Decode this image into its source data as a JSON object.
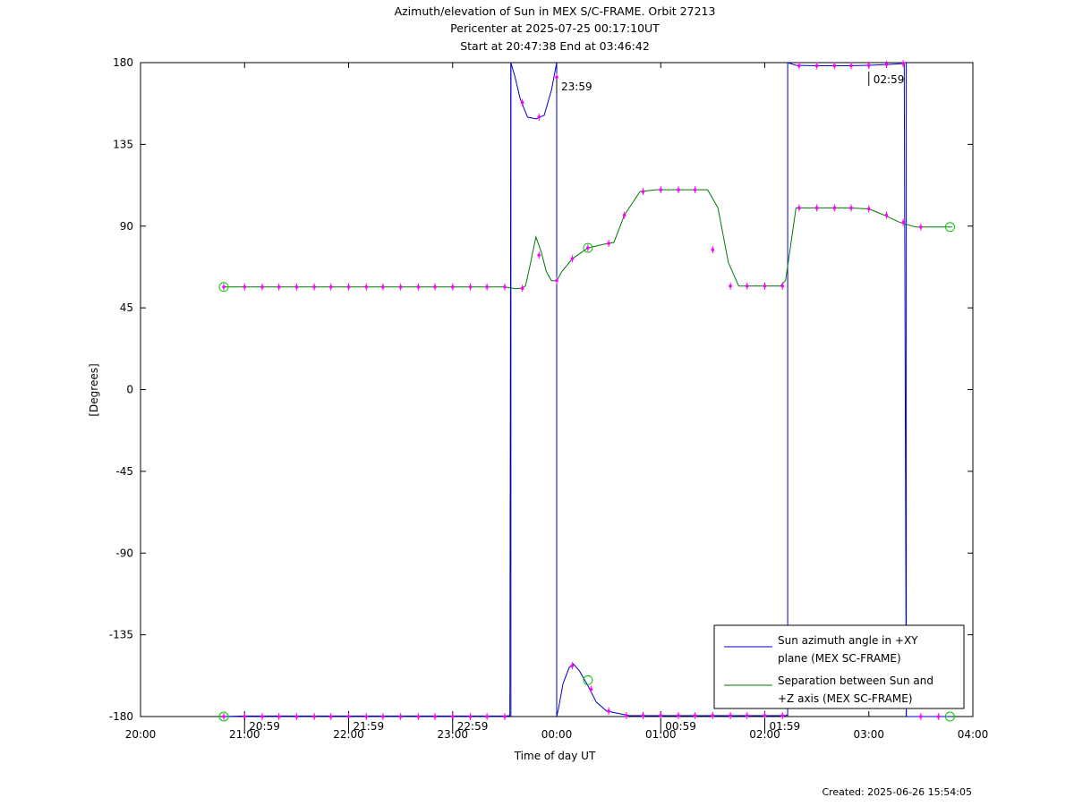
{
  "chart_data": {
    "type": "line",
    "title_lines": [
      "Azimuth/elevation of Sun in MEX S/C-FRAME.  Orbit 27213",
      "Pericenter at 2025-07-25 00:17:10UT",
      "Start at 20:47:38 End at 03:46:42"
    ],
    "xlabel": "Time of day UT",
    "ylabel": "[Degrees]",
    "xlim": [
      20.0,
      28.0
    ],
    "ylim": [
      -180,
      180
    ],
    "x_ticks": [
      20,
      21,
      22,
      23,
      24,
      25,
      26,
      27,
      28
    ],
    "x_tick_labels": [
      "20:00",
      "21:00",
      "22:00",
      "23:00",
      "00:00",
      "01:00",
      "02:00",
      "03:00",
      "04:00"
    ],
    "y_ticks": [
      180,
      135,
      90,
      45,
      0,
      -45,
      -90,
      -135,
      -180
    ],
    "y_tick_labels": [
      "180",
      "135",
      "90",
      "45",
      "0",
      "-45",
      "-90",
      "-135",
      "-180"
    ],
    "grid": false,
    "legend_position": "bottom-right",
    "hour_marks": [
      {
        "x": 21.0,
        "label": "20:59",
        "y": -180
      },
      {
        "x": 22.0,
        "label": "21:59",
        "y": -180
      },
      {
        "x": 23.0,
        "label": "22:59",
        "y": -180
      },
      {
        "x": 24.0,
        "label": "23:59",
        "y": 172
      },
      {
        "x": 25.0,
        "label": "00:59",
        "y": -180
      },
      {
        "x": 26.0,
        "label": "01:59",
        "y": -180
      },
      {
        "x": 27.0,
        "label": "02:59",
        "y": 176
      }
    ],
    "series": [
      {
        "name": "Sun azimuth angle in +XY plane (MEX SC-FRAME)",
        "legend_lines": [
          "Sun azimuth angle in +XY",
          "plane (MEX SC-FRAME)"
        ],
        "color": "#0000c8",
        "segments": [
          [
            [
              20.8,
              -180
            ],
            [
              21.0,
              -179.7
            ],
            [
              22.0,
              -179.7
            ],
            [
              23.0,
              -179.7
            ],
            [
              23.5,
              -179.7
            ],
            [
              23.55,
              -179.5
            ],
            [
              23.56,
              180
            ]
          ],
          [
            [
              23.56,
              180
            ],
            [
              23.6,
              172
            ],
            [
              23.65,
              160
            ],
            [
              23.72,
              150
            ],
            [
              23.8,
              149
            ],
            [
              23.88,
              151
            ],
            [
              23.95,
              165
            ],
            [
              24.0,
              180
            ]
          ],
          [
            [
              24.0,
              -180
            ],
            [
              24.02,
              -175
            ],
            [
              24.06,
              -162
            ],
            [
              24.12,
              -153
            ],
            [
              24.16,
              -151
            ],
            [
              24.22,
              -155
            ],
            [
              24.3,
              -163
            ],
            [
              24.38,
              -172
            ],
            [
              24.48,
              -177
            ],
            [
              24.7,
              -179.5
            ],
            [
              25.0,
              -179.5
            ],
            [
              25.5,
              -179.5
            ],
            [
              26.0,
              -179.5
            ],
            [
              26.2,
              -179.5
            ],
            [
              26.22,
              -179
            ]
          ],
          [
            [
              26.22,
              180
            ],
            [
              26.3,
              178.5
            ],
            [
              26.5,
              178.3
            ],
            [
              26.8,
              178.3
            ],
            [
              27.0,
              178.5
            ],
            [
              27.2,
              179
            ],
            [
              27.34,
              179.5
            ],
            [
              27.36,
              -180
            ]
          ],
          [
            [
              27.36,
              -180
            ],
            [
              27.5,
              -180
            ],
            [
              27.8,
              -180
            ]
          ]
        ],
        "vertical_jumps": [
          [
            23.56,
            -180,
            180
          ],
          [
            24.0,
            180,
            -180
          ],
          [
            26.22,
            -180,
            180
          ],
          [
            27.36,
            180,
            -180
          ]
        ]
      },
      {
        "name": "Separation between Sun and +Z axis (MEX SC-FRAME)",
        "legend_lines": [
          "Separation between Sun and",
          "+Z axis (MEX SC-FRAME)"
        ],
        "color": "#007800",
        "segments": [
          [
            [
              20.8,
              56.5
            ],
            [
              21.0,
              56.5
            ],
            [
              22.0,
              56.5
            ],
            [
              23.0,
              56.5
            ],
            [
              23.5,
              56.5
            ],
            [
              23.6,
              55.5
            ],
            [
              23.65,
              55.8
            ],
            [
              23.7,
              57
            ],
            [
              23.75,
              70
            ],
            [
              23.8,
              84
            ],
            [
              23.85,
              76
            ],
            [
              23.9,
              65
            ],
            [
              23.95,
              60
            ],
            [
              24.0,
              60
            ],
            [
              24.05,
              65
            ],
            [
              24.15,
              72
            ],
            [
              24.3,
              78
            ],
            [
              24.45,
              80
            ],
            [
              24.55,
              81
            ],
            [
              24.65,
              96
            ],
            [
              24.8,
              109
            ],
            [
              24.95,
              110
            ],
            [
              25.1,
              110
            ],
            [
              25.3,
              110
            ],
            [
              25.45,
              110
            ],
            [
              25.55,
              100
            ],
            [
              25.65,
              70
            ],
            [
              25.75,
              57
            ],
            [
              26.0,
              57
            ],
            [
              26.15,
              57
            ],
            [
              26.2,
              60
            ],
            [
              26.25,
              80
            ],
            [
              26.3,
              100
            ],
            [
              26.5,
              100
            ],
            [
              26.8,
              100
            ],
            [
              27.0,
              99.5
            ],
            [
              27.15,
              96
            ],
            [
              27.3,
              92
            ],
            [
              27.45,
              89.5
            ],
            [
              27.8,
              89.5
            ]
          ]
        ]
      }
    ],
    "marker_color": "#ff00ff",
    "marker_points": [
      [
        20.8,
        56.5
      ],
      [
        21.0,
        56.5
      ],
      [
        21.17,
        56.5
      ],
      [
        21.33,
        56.5
      ],
      [
        21.5,
        56.5
      ],
      [
        21.67,
        56.5
      ],
      [
        21.83,
        56.5
      ],
      [
        22.0,
        56.5
      ],
      [
        22.17,
        56.5
      ],
      [
        22.33,
        56.5
      ],
      [
        22.5,
        56.5
      ],
      [
        22.67,
        56.5
      ],
      [
        22.83,
        56.5
      ],
      [
        23.0,
        56.5
      ],
      [
        23.17,
        56.5
      ],
      [
        23.33,
        56.5
      ],
      [
        23.5,
        56.5
      ],
      [
        23.67,
        55.8
      ],
      [
        23.83,
        74
      ],
      [
        24.0,
        60
      ],
      [
        24.15,
        72
      ],
      [
        24.3,
        78
      ],
      [
        24.5,
        80.5
      ],
      [
        24.65,
        96
      ],
      [
        24.83,
        109
      ],
      [
        25.0,
        110
      ],
      [
        25.17,
        110
      ],
      [
        25.33,
        110
      ],
      [
        25.5,
        77
      ],
      [
        25.67,
        57
      ],
      [
        25.83,
        57
      ],
      [
        26.0,
        57
      ],
      [
        26.17,
        57
      ],
      [
        26.33,
        100
      ],
      [
        26.5,
        100
      ],
      [
        26.67,
        100
      ],
      [
        26.83,
        100
      ],
      [
        27.0,
        99.5
      ],
      [
        27.17,
        96
      ],
      [
        27.33,
        92
      ],
      [
        27.5,
        89.5
      ],
      [
        20.8,
        -180
      ],
      [
        21.0,
        -180
      ],
      [
        21.17,
        -180
      ],
      [
        21.33,
        -180
      ],
      [
        21.5,
        -180
      ],
      [
        21.67,
        -180
      ],
      [
        21.83,
        -180
      ],
      [
        22.0,
        -180
      ],
      [
        22.17,
        -180
      ],
      [
        22.33,
        -180
      ],
      [
        22.5,
        -180
      ],
      [
        22.67,
        -180
      ],
      [
        22.83,
        -180
      ],
      [
        23.0,
        -180
      ],
      [
        23.17,
        -180
      ],
      [
        23.33,
        -180
      ],
      [
        23.5,
        -180
      ],
      [
        23.67,
        158
      ],
      [
        23.83,
        150
      ],
      [
        24.0,
        172
      ],
      [
        24.15,
        -152
      ],
      [
        24.33,
        -165
      ],
      [
        24.5,
        -177
      ],
      [
        24.67,
        -179.5
      ],
      [
        24.83,
        -179.5
      ],
      [
        25.0,
        -179.5
      ],
      [
        25.17,
        -179.5
      ],
      [
        25.33,
        -179.5
      ],
      [
        25.5,
        -179.5
      ],
      [
        25.67,
        -179.5
      ],
      [
        25.83,
        -179.5
      ],
      [
        26.0,
        -179.5
      ],
      [
        26.17,
        -179.5
      ],
      [
        26.33,
        178.3
      ],
      [
        26.5,
        178.3
      ],
      [
        26.67,
        178.3
      ],
      [
        26.83,
        178.3
      ],
      [
        27.0,
        178.5
      ],
      [
        27.17,
        179
      ],
      [
        27.33,
        179.5
      ],
      [
        27.5,
        -180
      ],
      [
        27.67,
        -180
      ]
    ],
    "circle_points": [
      [
        20.8,
        56.5
      ],
      [
        20.8,
        -180
      ],
      [
        24.3,
        78
      ],
      [
        24.3,
        -160
      ],
      [
        27.78,
        89.5
      ],
      [
        27.78,
        -180
      ]
    ],
    "footer": "Created: 2025-06-26 15:54:05"
  }
}
